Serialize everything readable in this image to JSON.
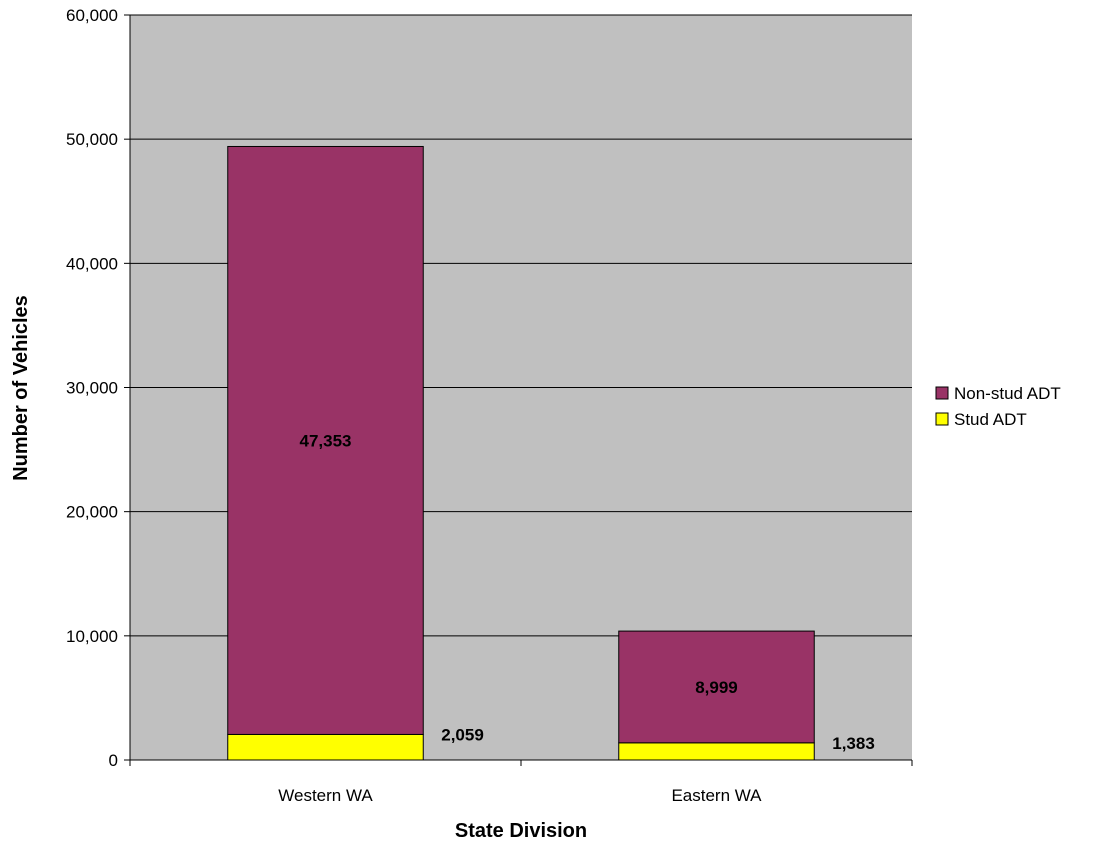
{
  "chart_data": {
    "type": "bar",
    "stacked": true,
    "categories": [
      "Western WA",
      "Eastern WA"
    ],
    "series": [
      {
        "name": "Stud ADT",
        "values": [
          2059,
          1383
        ],
        "labels": [
          "2,059",
          "1,383"
        ],
        "color": "#ffff00"
      },
      {
        "name": "Non-stud ADT",
        "values": [
          47353,
          8999
        ],
        "labels": [
          "47,353",
          "8,999"
        ],
        "color": "#993366"
      }
    ],
    "xlabel": "State Division",
    "ylabel": "Number of Vehicles",
    "ylim": [
      0,
      60000
    ],
    "yticks": [
      0,
      10000,
      20000,
      30000,
      40000,
      50000,
      60000
    ],
    "ytick_labels": [
      "0",
      "10,000",
      "20,000",
      "30,000",
      "40,000",
      "50,000",
      "60,000"
    ],
    "legend": {
      "position": "right",
      "entries": [
        {
          "name": "Non-stud ADT",
          "color": "#993366"
        },
        {
          "name": "Stud ADT",
          "color": "#ffff00"
        }
      ]
    },
    "plot_background": "#c0c0c0",
    "grid": true
  }
}
